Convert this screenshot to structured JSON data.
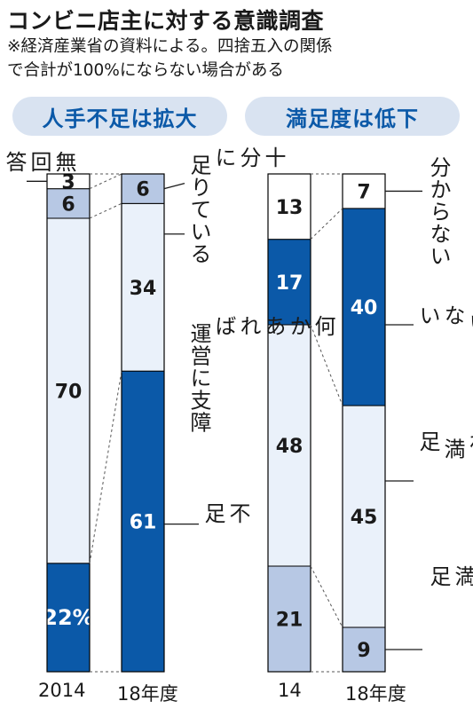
{
  "header": {
    "title": "コンビニ店主に対する意識調査",
    "note_line1": "※経済産業省の資料による。四捨五入の関係",
    "note_line2": "で合計が100%にならない場合がある"
  },
  "colors": {
    "dark": "#0b59a8",
    "mid": "#b7c8e4",
    "light": "#eaf1fa",
    "white": "#ffffff",
    "pill_bg": "#d9e3f1",
    "pill_text": "#0b59a8"
  },
  "chart_data": [
    {
      "type": "bar",
      "subtype": "stacked-100",
      "title": "人手不足は拡大",
      "categories": [
        "2014",
        "18年度"
      ],
      "series": [
        {
          "name": "不足",
          "values": [
            22,
            61
          ],
          "color": "#0b59a8",
          "value_labels": [
            "22%",
            "61"
          ]
        },
        {
          "name": "何かあれば運営に支障",
          "values": [
            70,
            34
          ],
          "color": "#eaf1fa",
          "value_labels": [
            "70",
            "34"
          ]
        },
        {
          "name": "十分に足りている",
          "values": [
            6,
            6
          ],
          "color": "#b7c8e4",
          "value_labels": [
            "6",
            "6"
          ]
        },
        {
          "name": "無回答",
          "values": [
            3,
            0
          ],
          "color": "#ffffff",
          "value_labels": [
            "3",
            ""
          ]
        }
      ]
    },
    {
      "type": "bar",
      "subtype": "stacked-100",
      "title": "満足度は低下",
      "categories": [
        "14",
        "18年度"
      ],
      "series": [
        {
          "name": "大変満足",
          "values": [
            21,
            9
          ],
          "color": "#b7c8e4",
          "value_labels": [
            "21",
            "9"
          ]
        },
        {
          "name": "おおむね満足",
          "values": [
            48,
            45
          ],
          "color": "#eaf1fa",
          "value_labels": [
            "48",
            "45"
          ]
        },
        {
          "name": "満足していない",
          "values": [
            17,
            40
          ],
          "color": "#0b59a8",
          "value_labels": [
            "17",
            "40"
          ]
        },
        {
          "name": "分からない",
          "values": [
            13,
            7
          ],
          "color": "#ffffff",
          "value_labels": [
            "13",
            "7"
          ]
        }
      ]
    }
  ],
  "labels": {
    "left": {
      "mukaito": "無\n回\n答",
      "juubun": "十\n分\nに\n 足りている",
      "nanika": "何\nか\nあ\nれ\nば\n 運営に支障",
      "fusoku": "不\n足"
    },
    "right": {
      "wakaranai": "分からない",
      "manzoku_shiteinai": "満\n足\nし\nて\n い\nな\nい",
      "oomune": "お\nお\nむ\nね\n 満\n足",
      "taihen": "大\n変\n満\n足"
    }
  }
}
